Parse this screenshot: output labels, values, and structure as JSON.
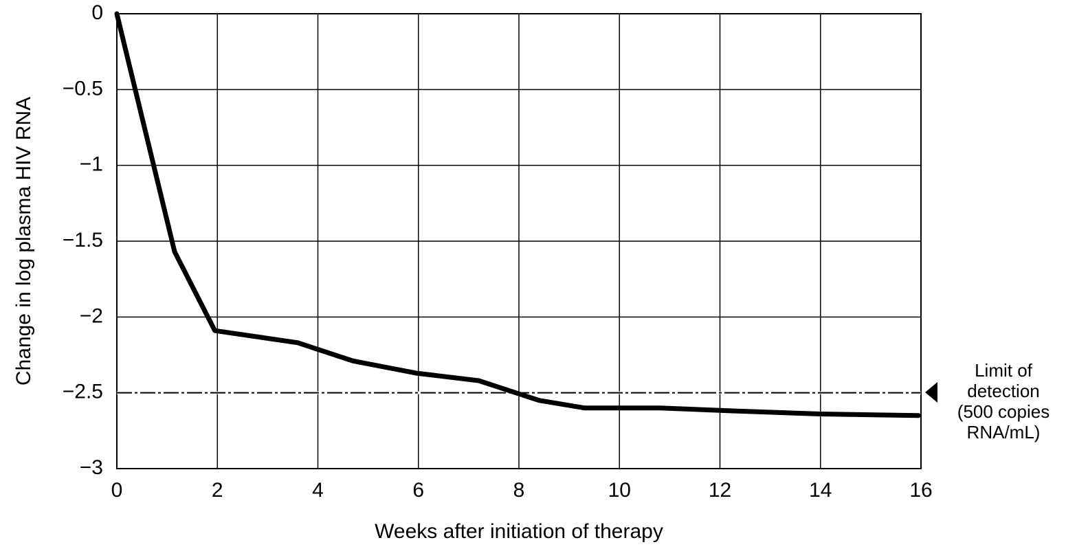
{
  "chart_data": {
    "type": "line",
    "x_label": "Weeks after initiation of therapy",
    "y_label": "Change in log plasma HIV RNA",
    "x": [
      0,
      1.15,
      1.95,
      3.6,
      4.7,
      5.95,
      7.2,
      8.4,
      9.3,
      10.8,
      12.3,
      14,
      15.95
    ],
    "values": [
      0,
      -1.57,
      -2.09,
      -2.17,
      -2.29,
      -2.37,
      -2.42,
      -2.55,
      -2.6,
      -2.6,
      -2.62,
      -2.64,
      -2.65
    ],
    "color": "#000000",
    "xlim": [
      0,
      16
    ],
    "xticks": [
      0,
      2,
      4,
      6,
      8,
      10,
      12,
      14,
      16
    ],
    "ylim": [
      -3,
      0
    ],
    "yticks": [
      0,
      {
        "value": -0.5,
        "label": "−0.5"
      },
      {
        "value": -1,
        "label": "−1"
      },
      {
        "value": -1.5,
        "label": "−1.5"
      },
      {
        "value": -2,
        "label": "−2"
      },
      {
        "value": -2.5,
        "label": "−2.5"
      },
      {
        "value": -3,
        "label": "−3"
      }
    ],
    "grid": true,
    "reference_line": {
      "value": -2.5,
      "label": [
        "Limit of",
        "detection",
        "(500 copies",
        "RNA/mL)"
      ]
    }
  }
}
